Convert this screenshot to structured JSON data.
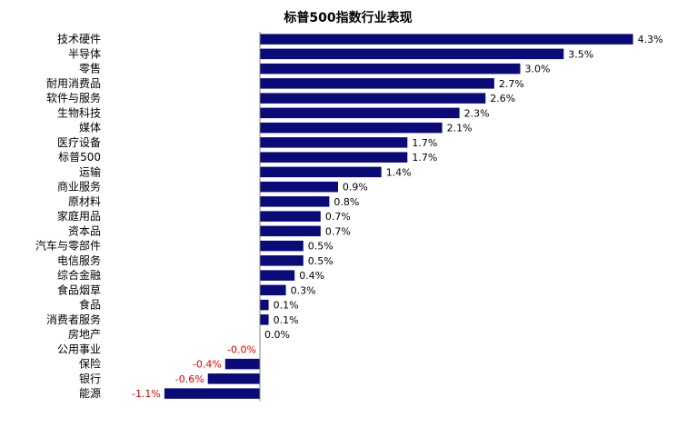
{
  "chart_data": {
    "type": "bar",
    "orientation": "horizontal",
    "title": "标普500指数行业表现",
    "xlabel": "",
    "ylabel": "",
    "xlim": [
      -1.1,
      4.3
    ],
    "grid": false,
    "categories": [
      "技术硬件",
      "半导体",
      "零售",
      "耐用消费品",
      "软件与服务",
      "生物科技",
      "媒体",
      "医疗设备",
      "标普500",
      "运输",
      "商业服务",
      "原材料",
      "家庭用品",
      "资本品",
      "汽车与零部件",
      "电信服务",
      "综合金融",
      "食品烟草",
      "食品",
      "消费者服务",
      "房地产",
      "公用事业",
      "保险",
      "银行",
      "能源"
    ],
    "values": [
      4.3,
      3.5,
      3.0,
      2.7,
      2.6,
      2.3,
      2.1,
      1.7,
      1.7,
      1.4,
      0.9,
      0.8,
      0.7,
      0.7,
      0.5,
      0.5,
      0.4,
      0.3,
      0.1,
      0.1,
      0.0,
      -0.0,
      -0.4,
      -0.6,
      -1.1
    ],
    "labels": [
      "4.3%",
      "3.5%",
      "3.0%",
      "2.7%",
      "2.6%",
      "2.3%",
      "2.1%",
      "1.7%",
      "1.7%",
      "1.4%",
      "0.9%",
      "0.8%",
      "0.7%",
      "0.7%",
      "0.5%",
      "0.5%",
      "0.4%",
      "0.3%",
      "0.1%",
      "0.1%",
      "0.0%",
      "-0.0%",
      "-0.4%",
      "-0.6%",
      "-1.1%"
    ],
    "colors": {
      "bar": "#0a0a78",
      "positive_label": "#000000",
      "negative_label": "#e00000"
    }
  }
}
